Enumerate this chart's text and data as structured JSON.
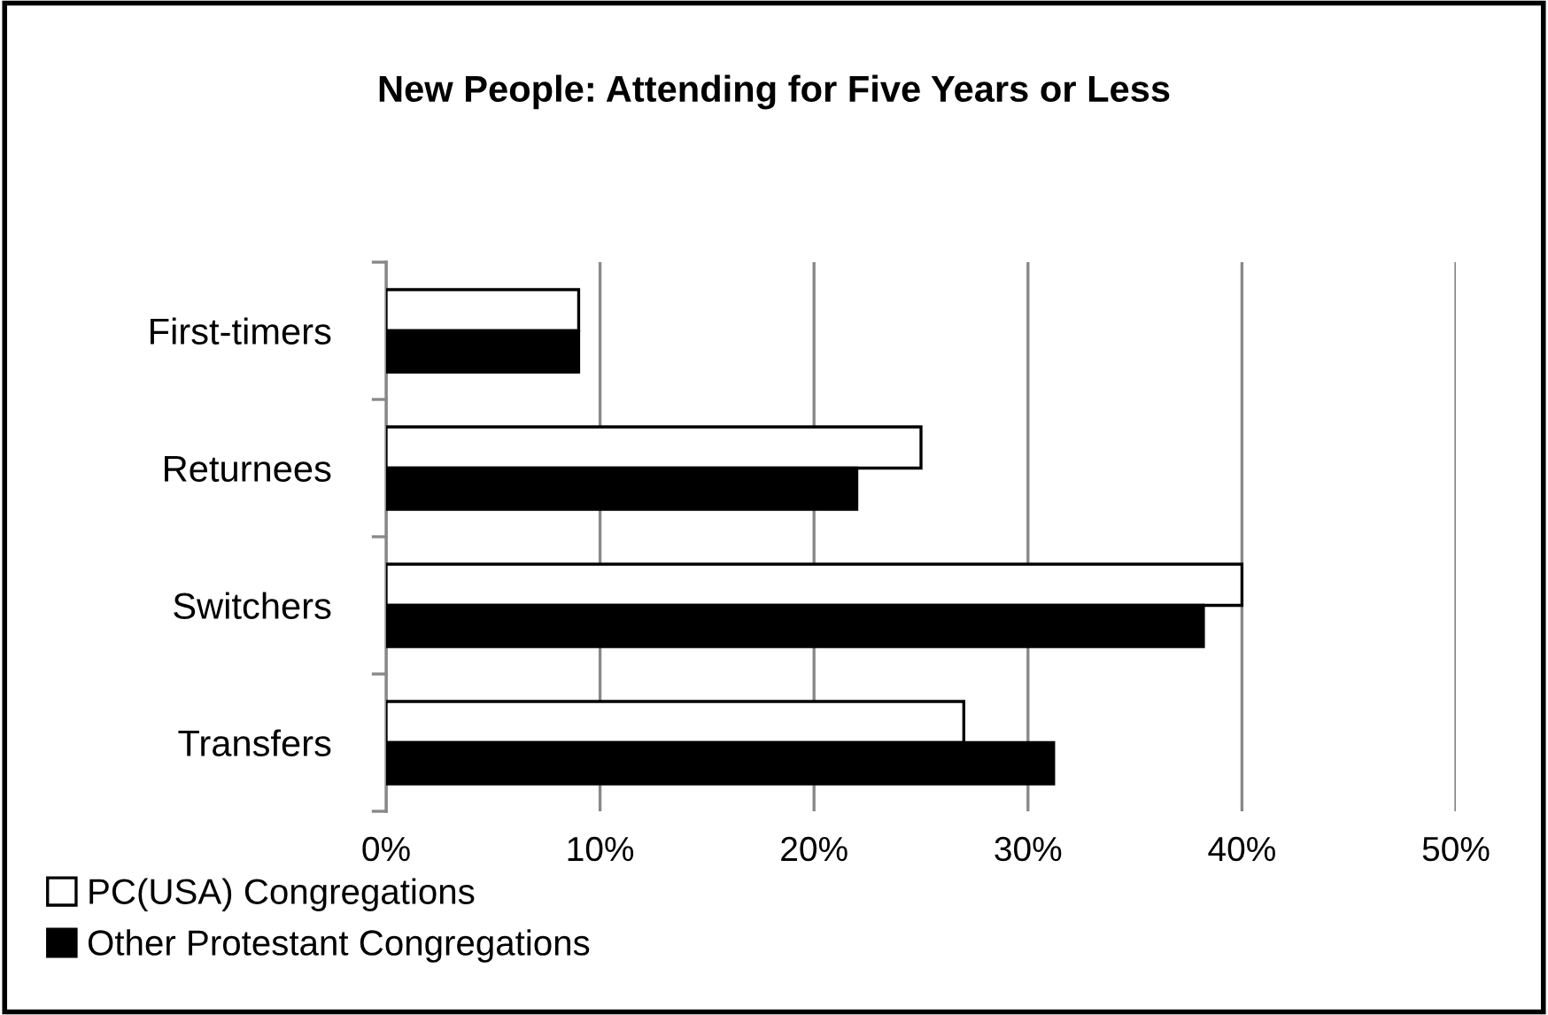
{
  "chart_data": {
    "type": "bar",
    "orientation": "horizontal",
    "title": "New People: Attending for Five Years or Less",
    "categories": [
      "First-timers",
      "Returnees",
      "Switchers",
      "Transfers"
    ],
    "series": [
      {
        "name": "PC(USA) Congregations",
        "color": "#ffffff",
        "values": [
          9,
          25,
          40,
          27
        ]
      },
      {
        "name": "Other Protestant Congregations",
        "color": "#000000",
        "values": [
          9,
          22,
          38.2,
          31.2
        ]
      }
    ],
    "xlim": [
      0,
      50
    ],
    "xticks": [
      {
        "value": 0,
        "label": "0%"
      },
      {
        "value": 10,
        "label": "10%"
      },
      {
        "value": 20,
        "label": "20%"
      },
      {
        "value": 30,
        "label": "30%"
      },
      {
        "value": 40,
        "label": "40%"
      },
      {
        "value": 50,
        "label": "50%"
      }
    ],
    "grid": "x",
    "legend": "bottom left"
  }
}
